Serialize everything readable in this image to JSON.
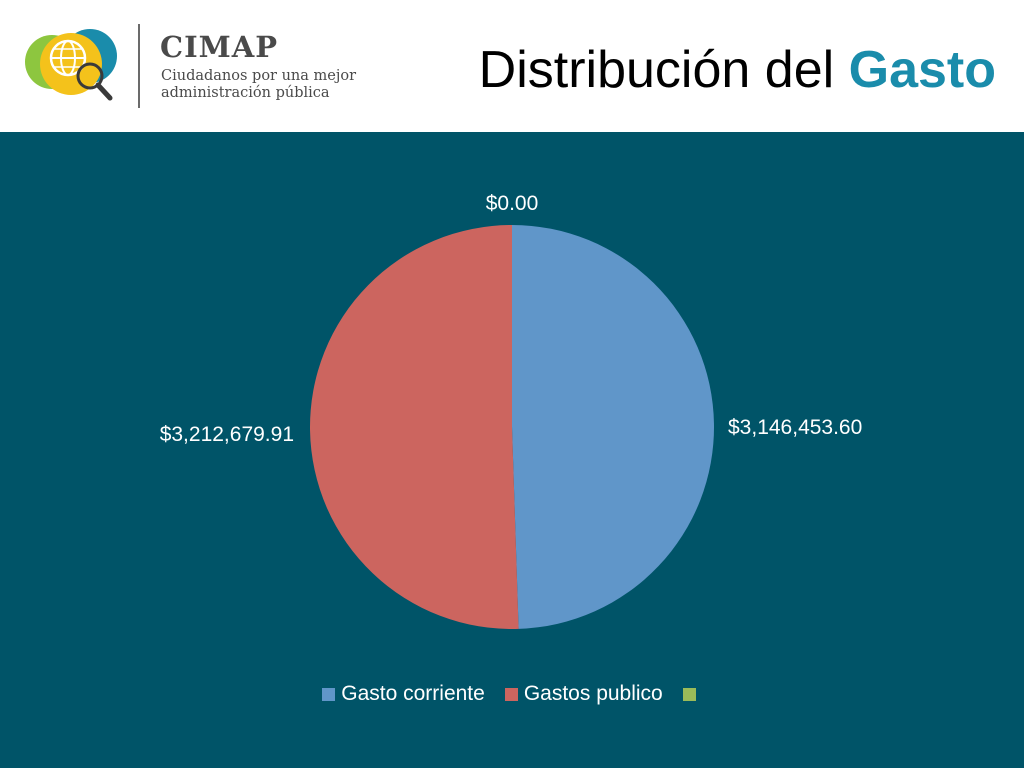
{
  "header": {
    "brand_name": "CIMAP",
    "tagline": "Ciudadanos por una mejor administración pública",
    "title_main": "Distribución del",
    "title_accent": "Gasto"
  },
  "colors": {
    "panel_background": "#005468",
    "title_accent": "#1a8cab"
  },
  "icons": {
    "logo": "globe-magnifier-logo"
  },
  "chart_data": {
    "type": "pie",
    "title": "",
    "series": [
      {
        "name": "Gasto corriente",
        "value": 3146453.6,
        "label": "$3,146,453.60",
        "color": "#6096c9"
      },
      {
        "name": "Gastos publico",
        "value": 3212679.91,
        "label": "$3,212,679.91",
        "color": "#cc655f"
      },
      {
        "name": "",
        "value": 0.0,
        "label": "$0.00",
        "color": "#9bbb59"
      }
    ],
    "legend_position": "bottom",
    "start_angle": "12 o'clock, clockwise"
  }
}
